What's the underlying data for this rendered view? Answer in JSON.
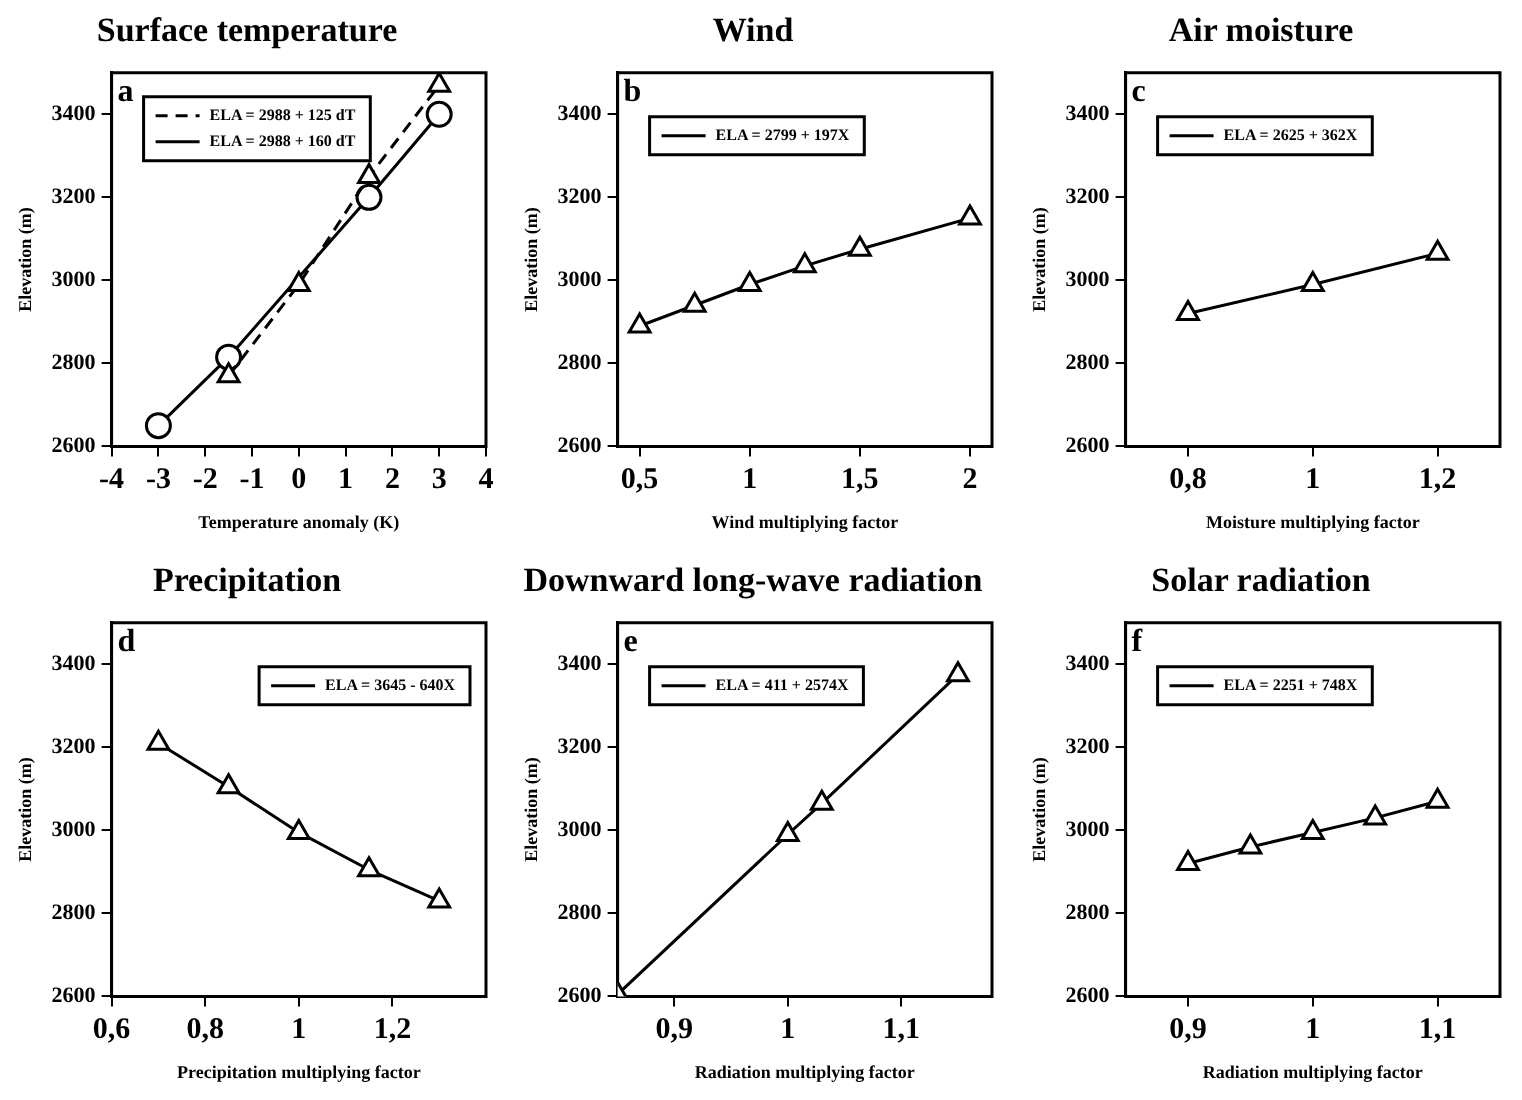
{
  "chart_data": [
    {
      "type": "line",
      "title": "Surface temperature",
      "xlabel": "Temperature anomaly (K)",
      "ylabel": "Elevation (m)",
      "annotations": [
        "a"
      ],
      "legend": "top left",
      "grid": false,
      "xlim": [
        -4,
        4
      ],
      "xticks": [
        -4,
        -3,
        -2,
        -1,
        0,
        1,
        2,
        3,
        4
      ],
      "ylim": [
        2600,
        3500
      ],
      "yticks": [
        2600,
        2800,
        3000,
        3200,
        3400
      ],
      "series": [
        {
          "name": "ELA = 2988 + 125 dT",
          "color": "#000000",
          "marker": "triangle",
          "line_style": "dashed",
          "x": [
            -1.5,
            0,
            1.5,
            3
          ],
          "values": [
            2770,
            2990,
            3250,
            3470
          ]
        },
        {
          "name": "ELA = 2988 + 160 dT",
          "color": "#000000",
          "marker": "circle",
          "line_style": "solid",
          "x": [
            -3,
            -1.5,
            1.5,
            3
          ],
          "values": [
            2650,
            2815,
            3200,
            3400
          ]
        }
      ]
    },
    {
      "type": "line",
      "title": "Wind",
      "xlabel": "Wind multiplying factor",
      "ylabel": "Elevation (m)",
      "annotations": [
        "b"
      ],
      "legend": "top left",
      "grid": false,
      "xlim": [
        0.4,
        2.1
      ],
      "xticks": [
        {
          "value": 0.5,
          "label": "0,5"
        },
        1,
        {
          "value": 1.5,
          "label": "1,5"
        },
        2
      ],
      "ylim": [
        2600,
        3500
      ],
      "yticks": [
        2600,
        2800,
        3000,
        3200,
        3400
      ],
      "series": [
        {
          "name": "ELA = 2799 + 197X",
          "color": "#000000",
          "marker": "triangle",
          "line_style": "solid",
          "x": [
            0.5,
            0.75,
            1,
            1.25,
            1.5,
            2
          ],
          "values": [
            2890,
            2940,
            2990,
            3035,
            3075,
            3150
          ]
        }
      ]
    },
    {
      "type": "line",
      "title": "Air moisture",
      "xlabel": "Moisture multiplying factor",
      "ylabel": "Elevation (m)",
      "annotations": [
        "c"
      ],
      "legend": "top left",
      "grid": false,
      "xlim": [
        0.7,
        1.3
      ],
      "xticks": [
        {
          "value": 0.8,
          "label": "0,8"
        },
        1,
        {
          "value": 1.2,
          "label": "1,2"
        }
      ],
      "ylim": [
        2600,
        3500
      ],
      "yticks": [
        2600,
        2800,
        3000,
        3200,
        3400
      ],
      "series": [
        {
          "name": "ELA = 2625 + 362X",
          "color": "#000000",
          "marker": "triangle",
          "line_style": "solid",
          "x": [
            0.8,
            1,
            1.2
          ],
          "values": [
            2920,
            2990,
            3065
          ]
        }
      ]
    },
    {
      "type": "line",
      "title": "Precipitation",
      "xlabel": "Precipitation multiplying factor",
      "ylabel": "Elevation (m)",
      "annotations": [
        "d"
      ],
      "legend": "top right",
      "grid": false,
      "xlim": [
        0.6,
        1.4
      ],
      "xticks": [
        {
          "value": 0.6,
          "label": "0,6"
        },
        {
          "value": 0.8,
          "label": "0,8"
        },
        1,
        {
          "value": 1.2,
          "label": "1,2"
        }
      ],
      "ylim": [
        2600,
        3500
      ],
      "yticks": [
        2600,
        2800,
        3000,
        3200,
        3400
      ],
      "series": [
        {
          "name": "ELA = 3645 - 640X",
          "color": "#000000",
          "marker": "triangle",
          "line_style": "solid",
          "x": [
            0.7,
            0.85,
            1,
            1.15,
            1.3
          ],
          "values": [
            3210,
            3105,
            2995,
            2905,
            2830
          ]
        }
      ]
    },
    {
      "type": "line",
      "title": "Downward long-wave radiation",
      "xlabel": "Radiation multiplying factor",
      "ylabel": "Elevation (m)",
      "annotations": [
        "e"
      ],
      "legend": "top left",
      "grid": false,
      "xlim": [
        0.85,
        1.18
      ],
      "xticks": [
        {
          "value": 0.9,
          "label": "0,9"
        },
        1,
        {
          "value": 1.1,
          "label": "1,1"
        }
      ],
      "ylim": [
        2600,
        3500
      ],
      "yticks": [
        2600,
        2800,
        3000,
        3200,
        3400
      ],
      "series": [
        {
          "name": "ELA = 411 + 2574X",
          "color": "#000000",
          "marker": "triangle",
          "line_style": "solid",
          "x": [
            0.85,
            1,
            1.03,
            1.15
          ],
          "values": [
            2605,
            2990,
            3065,
            3375
          ]
        }
      ]
    },
    {
      "type": "line",
      "title": "Solar radiation",
      "xlabel": "Radiation multiplying factor",
      "ylabel": "Elevation (m)",
      "annotations": [
        "f"
      ],
      "legend": "top left",
      "grid": false,
      "xlim": [
        0.85,
        1.15
      ],
      "xticks": [
        {
          "value": 0.9,
          "label": "0,9"
        },
        1,
        {
          "value": 1.1,
          "label": "1,1"
        }
      ],
      "ylim": [
        2600,
        3500
      ],
      "yticks": [
        2600,
        2800,
        3000,
        3200,
        3400
      ],
      "series": [
        {
          "name": "ELA = 2251 + 748X",
          "color": "#000000",
          "marker": "triangle",
          "line_style": "solid",
          "x": [
            0.9,
            0.95,
            1,
            1.05,
            1.1
          ],
          "values": [
            2920,
            2960,
            2995,
            3030,
            3070
          ]
        }
      ]
    }
  ]
}
